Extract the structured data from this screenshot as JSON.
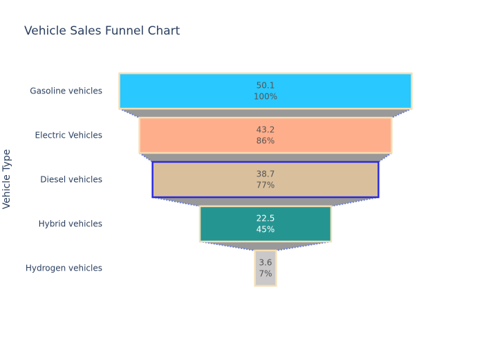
{
  "chart_data": {
    "type": "funnel",
    "title": "Vehicle Sales Funnel Chart",
    "ylabel": "Vehicle Type",
    "categories": [
      "Gasoline vehicles",
      "Electric Vehicles",
      "Diesel vehicles",
      "Hybrid vehicles",
      "Hydrogen vehicles"
    ],
    "values": [
      50.1,
      43.2,
      38.7,
      22.5,
      3.6
    ],
    "percent_labels": [
      "100%",
      "86%",
      "77%",
      "45%",
      "7%"
    ],
    "bar_colors": [
      "#29c8fe",
      "#ffae8c",
      "#d9bf9c",
      "#259592",
      "#cac8c8"
    ],
    "bar_borders": [
      "#f5deb3",
      "#f5deb3",
      "#2a2add",
      "#f5deb3",
      "#f5deb3"
    ],
    "label_colors": [
      "#555555",
      "#555555",
      "#555555",
      "#ffffff",
      "#555555"
    ],
    "connector_color": "#999999",
    "connector_line_color": "#6a7fdb"
  }
}
